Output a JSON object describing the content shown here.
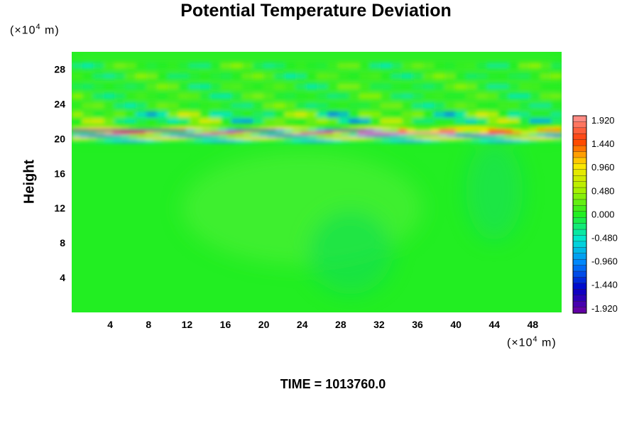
{
  "title": "Potential Temperature Deviation",
  "y_unit": {
    "prefix": "(×10",
    "exp": "4",
    "suffix": " m)"
  },
  "x_unit": {
    "prefix": "(×10",
    "exp": "4",
    "suffix": " m)"
  },
  "time_label": "TIME = 1013760.0",
  "chart_data": {
    "type": "heatmap",
    "title": "Potential Temperature Deviation",
    "xlabel": "",
    "ylabel": "Height",
    "x_ticks": [
      4,
      8,
      12,
      16,
      20,
      24,
      28,
      32,
      36,
      40,
      44,
      48
    ],
    "y_ticks": [
      4,
      8,
      12,
      16,
      20,
      24,
      28
    ],
    "xlim": [
      0,
      51
    ],
    "ylim": [
      0,
      30
    ],
    "x_unit": "×10^4 m",
    "y_unit": "×10^4 m",
    "colorbar": {
      "ticks": [
        "1.920",
        "1.440",
        "0.960",
        "0.480",
        "0.000",
        "-0.480",
        "-0.960",
        "-1.440",
        "-1.920"
      ],
      "range": [
        -1.92,
        1.92
      ],
      "levels": 33
    },
    "field_description": {
      "background_value": 0.0,
      "strong_layer_y": [
        19.8,
        21.2
      ],
      "wave_region_y": [
        21.2,
        29
      ]
    }
  },
  "colors": {
    "background_field": "#22ee22",
    "negative_extreme": "#7000a0",
    "positive_extreme": "#ff9090"
  }
}
